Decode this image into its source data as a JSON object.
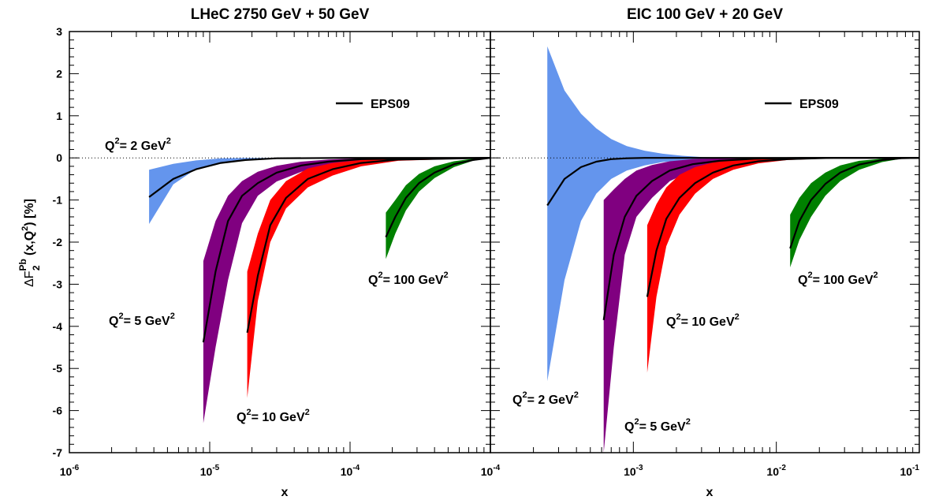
{
  "chart_data": {
    "type": "area",
    "y_axis": {
      "label_main": "ΔF",
      "label_sub": "2",
      "label_sup": "Pb",
      "label_args_open": "(x,Q",
      "label_args_sup": "2",
      "label_args_close": ")",
      "label_unit": "[%]",
      "range": [
        -7,
        3
      ],
      "ticks": [
        -7,
        -6,
        -5,
        -4,
        -3,
        -2,
        -1,
        0,
        1,
        2,
        3
      ],
      "tick_labels": [
        "-7",
        "-6",
        "-5",
        "-4",
        "-3",
        "-2",
        "-1",
        "0",
        "1",
        "2",
        "3"
      ]
    },
    "grid": false,
    "panels": [
      {
        "title": "LHeC 2750 GeV + 50 GeV",
        "xlabel": "x",
        "xscale": "log",
        "xlim": [
          1e-06,
          0.001
        ],
        "x_tick_labels": [
          {
            "base": "10",
            "exp": "-6",
            "value": 1e-06
          },
          {
            "base": "10",
            "exp": "-5",
            "value": 1e-05
          },
          {
            "base": "10",
            "exp": "-4",
            "value": 0.0001
          }
        ],
        "legend": {
          "label": "EPS09",
          "position": "upper-right"
        },
        "series": [
          {
            "color": "#6495ED",
            "annotation": {
              "prefix": "Q",
              "sup1": "2",
              "text": "= 2 GeV",
              "sup2": "2"
            },
            "x": [
              3.7e-06,
              5.5e-06,
              8e-06,
              1.2e-05,
              1.8e-05,
              3e-05,
              0.0001,
              0.001
            ],
            "central": [
              -0.93,
              -0.5,
              -0.27,
              -0.12,
              -0.05,
              -0.01,
              0.0,
              0.0
            ],
            "upper": [
              -0.28,
              -0.14,
              -0.06,
              -0.01,
              0.0,
              0.0,
              0.0,
              0.0
            ],
            "lower": [
              -1.57,
              -0.63,
              -0.26,
              -0.12,
              -0.06,
              -0.02,
              0.0,
              0.0
            ]
          },
          {
            "color": "#800080",
            "annotation": {
              "prefix": "Q",
              "sup1": "2",
              "text": "= 5 GeV",
              "sup2": "2"
            },
            "x": [
              9e-06,
              1.1e-05,
              1.35e-05,
              1.7e-05,
              2.2e-05,
              3e-05,
              4.5e-05,
              7e-05,
              0.00012,
              0.001
            ],
            "central": [
              -4.38,
              -2.7,
              -1.5,
              -0.9,
              -0.6,
              -0.35,
              -0.18,
              -0.09,
              -0.03,
              0.0
            ],
            "upper": [
              -2.45,
              -1.5,
              -0.9,
              -0.55,
              -0.33,
              -0.19,
              -0.09,
              -0.04,
              -0.01,
              0.0
            ],
            "lower": [
              -6.3,
              -4.5,
              -2.9,
              -1.55,
              -0.9,
              -0.56,
              -0.33,
              -0.16,
              -0.06,
              0.0
            ]
          },
          {
            "color": "#FF0000",
            "annotation": {
              "prefix": "Q",
              "sup1": "2",
              "text": "= 10 GeV",
              "sup2": "2"
            },
            "x": [
              1.85e-05,
              2.2e-05,
              2.7e-05,
              3.5e-05,
              5e-05,
              7.5e-05,
              0.00012,
              0.00022,
              0.001
            ],
            "central": [
              -4.15,
              -2.8,
              -1.6,
              -0.95,
              -0.5,
              -0.27,
              -0.12,
              -0.04,
              0.0
            ],
            "upper": [
              -2.7,
              -1.8,
              -1.0,
              -0.55,
              -0.25,
              -0.12,
              -0.05,
              -0.01,
              0.0
            ],
            "lower": [
              -5.7,
              -3.4,
              -2.0,
              -1.2,
              -0.7,
              -0.42,
              -0.2,
              -0.07,
              0.0
            ]
          },
          {
            "color": "#008000",
            "annotation": {
              "prefix": "Q",
              "sup1": "2",
              "text": "= 100 GeV",
              "sup2": "2"
            },
            "x": [
              0.00018,
              0.00021,
              0.00025,
              0.00031,
              0.0004,
              0.00055,
              0.00075,
              0.001
            ],
            "central": [
              -1.88,
              -1.4,
              -0.95,
              -0.6,
              -0.35,
              -0.15,
              -0.05,
              0.0
            ],
            "upper": [
              -1.3,
              -1.0,
              -0.65,
              -0.38,
              -0.2,
              -0.08,
              -0.02,
              0.0
            ],
            "lower": [
              -2.4,
              -1.8,
              -1.25,
              -0.8,
              -0.48,
              -0.22,
              -0.07,
              0.0
            ]
          }
        ]
      },
      {
        "title": "EIC 100 GeV + 20 GeV",
        "xlabel": "x",
        "xscale": "log",
        "xlim": [
          0.0001,
          0.1
        ],
        "x_tick_labels": [
          {
            "base": "10",
            "exp": "-4",
            "value": 0.0001
          },
          {
            "base": "10",
            "exp": "-3",
            "value": 0.001
          },
          {
            "base": "10",
            "exp": "-2",
            "value": 0.01
          },
          {
            "base": "10",
            "exp": "-1",
            "value": 0.1
          }
        ],
        "legend": {
          "label": "EPS09",
          "position": "upper-right"
        },
        "series": [
          {
            "color": "#6495ED",
            "annotation": {
              "prefix": "Q",
              "sup1": "2",
              "text": "= 2 GeV",
              "sup2": "2"
            },
            "x": [
              0.00025,
              0.00033,
              0.00043,
              0.00055,
              0.0007,
              0.0009,
              0.0012,
              0.0016,
              0.0022,
              0.003,
              0.005,
              0.01,
              0.1
            ],
            "central": [
              -1.13,
              -0.5,
              -0.22,
              -0.09,
              -0.03,
              -0.01,
              0.0,
              0.0,
              0.0,
              0.0,
              0.0,
              0.0,
              0.0
            ],
            "upper": [
              2.65,
              1.6,
              1.05,
              0.7,
              0.45,
              0.28,
              0.17,
              0.1,
              0.05,
              0.02,
              0.0,
              0.0,
              0.0
            ],
            "lower": [
              -5.3,
              -2.9,
              -1.5,
              -0.85,
              -0.5,
              -0.3,
              -0.18,
              -0.1,
              -0.06,
              -0.03,
              0.0,
              0.0,
              0.0
            ]
          },
          {
            "color": "#800080",
            "annotation": {
              "prefix": "Q",
              "sup1": "2",
              "text": "= 5 GeV",
              "sup2": "2"
            },
            "x": [
              0.00062,
              0.00073,
              0.00087,
              0.00105,
              0.00135,
              0.0018,
              0.0026,
              0.004,
              0.007,
              0.015,
              0.1
            ],
            "central": [
              -3.85,
              -2.3,
              -1.4,
              -0.9,
              -0.55,
              -0.3,
              -0.15,
              -0.07,
              -0.02,
              0.0,
              0.0
            ],
            "upper": [
              -1.0,
              -0.75,
              -0.5,
              -0.3,
              -0.17,
              -0.08,
              -0.03,
              -0.01,
              0.0,
              0.0,
              0.0
            ],
            "lower": [
              -7.0,
              -4.5,
              -2.3,
              -1.4,
              -0.95,
              -0.55,
              -0.3,
              -0.15,
              -0.06,
              -0.01,
              0.0
            ]
          },
          {
            "color": "#FF0000",
            "annotation": {
              "prefix": "Q",
              "sup1": "2",
              "text": "= 10 GeV",
              "sup2": "2"
            },
            "x": [
              0.00125,
              0.00145,
              0.0017,
              0.0021,
              0.0027,
              0.0036,
              0.005,
              0.0075,
              0.012,
              0.025,
              0.1
            ],
            "central": [
              -3.3,
              -2.2,
              -1.45,
              -0.95,
              -0.6,
              -0.35,
              -0.18,
              -0.08,
              -0.03,
              0.0,
              0.0
            ],
            "upper": [
              -1.6,
              -1.1,
              -0.7,
              -0.4,
              -0.22,
              -0.11,
              -0.05,
              -0.02,
              0.0,
              0.0,
              0.0
            ],
            "lower": [
              -5.1,
              -3.3,
              -2.1,
              -1.35,
              -0.85,
              -0.5,
              -0.28,
              -0.13,
              -0.05,
              -0.01,
              0.0
            ]
          },
          {
            "color": "#008000",
            "annotation": {
              "prefix": "Q",
              "sup1": "2",
              "text": "= 100 GeV",
              "sup2": "2"
            },
            "x": [
              0.0125,
              0.0145,
              0.0175,
              0.022,
              0.028,
              0.038,
              0.055,
              0.075,
              0.1
            ],
            "central": [
              -2.15,
              -1.5,
              -1.0,
              -0.62,
              -0.35,
              -0.16,
              -0.05,
              -0.01,
              0.0
            ],
            "upper": [
              -1.35,
              -0.95,
              -0.6,
              -0.35,
              -0.18,
              -0.07,
              -0.02,
              0.0,
              0.0
            ],
            "lower": [
              -2.6,
              -1.95,
              -1.4,
              -0.9,
              -0.55,
              -0.28,
              -0.1,
              -0.02,
              0.0
            ]
          }
        ]
      }
    ]
  }
}
